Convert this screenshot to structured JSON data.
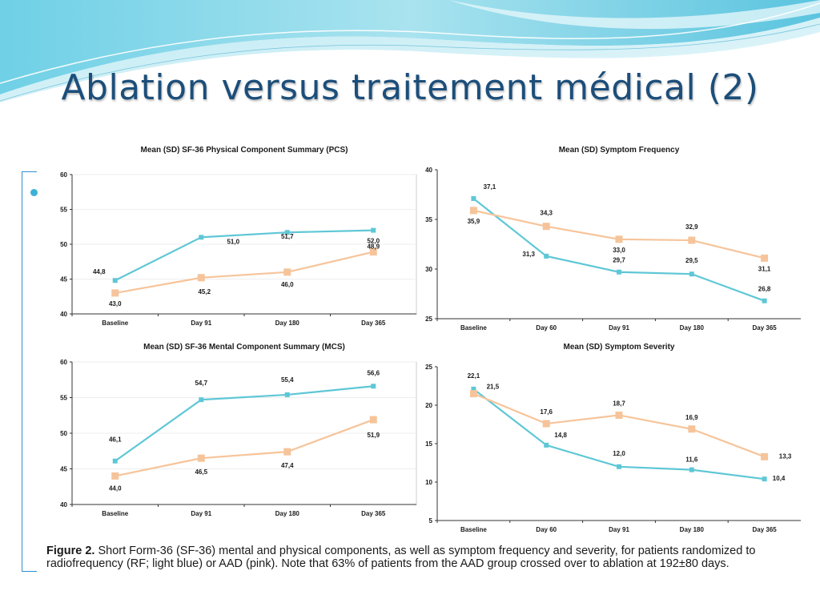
{
  "slide": {
    "title": "Ablation versus traitement médical (2)"
  },
  "colors": {
    "rf": "#5ec7d6",
    "aad": "#f6c49a",
    "title": "#1c4e7a",
    "accent": "#2f8fcf"
  },
  "caption": {
    "label": "Figure 2.",
    "text": " Short Form-36 (SF-36) mental and physical components, as well as symptom frequency and severity, for patients randomized to radiofrequency (RF; light blue) or AAD (pink). Note that 63% of patients from the AAD group crossed over to ablation at 192±80 days."
  },
  "chart_data": [
    {
      "type": "line",
      "title": "Mean (SD) SF-36 Physical Component Summary (PCS)",
      "categories": [
        "Baseline",
        "Day 91",
        "Day 180",
        "Day 365"
      ],
      "ylim": [
        40,
        60
      ],
      "yticks": [
        "40",
        "45",
        "50",
        "55",
        "60"
      ],
      "series": [
        {
          "key": "rf",
          "values": [
            44.8,
            51.0,
            51.7,
            52.0
          ],
          "labels": [
            "44,8",
            "51,0",
            "51,7",
            "52,0"
          ]
        },
        {
          "key": "aad",
          "values": [
            43.0,
            45.2,
            46.0,
            48.9
          ],
          "labels": [
            "43,0",
            "45,2",
            "46,0",
            "48,9"
          ]
        }
      ],
      "grid": true
    },
    {
      "type": "line",
      "title": "Mean (SD) Symptom Frequency",
      "categories": [
        "Baseline",
        "Day 60",
        "Day 91",
        "Day 180",
        "Day 365"
      ],
      "ylim": [
        25,
        40
      ],
      "yticks": [
        "25",
        "30",
        "35",
        "40"
      ],
      "series": [
        {
          "key": "rf",
          "values": [
            37.1,
            31.3,
            29.7,
            29.5,
            26.8
          ],
          "labels": [
            "37,1",
            "31,3",
            "29,7",
            "29,5",
            "26,8"
          ]
        },
        {
          "key": "aad",
          "values": [
            35.9,
            34.3,
            33.0,
            32.9,
            31.1
          ],
          "labels": [
            "35,9",
            "34,3",
            "33,0",
            "32,9",
            "31,1"
          ]
        }
      ],
      "grid": false
    },
    {
      "type": "line",
      "title": "Mean (SD) SF-36 Mental Component Summary (MCS)",
      "categories": [
        "Baseline",
        "Day 91",
        "Day 180",
        "Day 365"
      ],
      "ylim": [
        40,
        60
      ],
      "yticks": [
        "40",
        "45",
        "50",
        "55",
        "60"
      ],
      "series": [
        {
          "key": "rf",
          "values": [
            46.1,
            54.7,
            55.4,
            56.6
          ],
          "labels": [
            "46,1",
            "54,7",
            "55,4",
            "56,6"
          ]
        },
        {
          "key": "aad",
          "values": [
            44.0,
            46.5,
            47.4,
            51.9
          ],
          "labels": [
            "44,0",
            "46,5",
            "47,4",
            "51,9"
          ]
        }
      ],
      "grid": true
    },
    {
      "type": "line",
      "title": "Mean (SD) Symptom Severity",
      "categories": [
        "Baseline",
        "Day 60",
        "Day 91",
        "Day 180",
        "Day 365"
      ],
      "ylim": [
        5,
        25
      ],
      "yticks": [
        "5",
        "10",
        "15",
        "20",
        "25"
      ],
      "series": [
        {
          "key": "rf",
          "values": [
            22.1,
            14.8,
            12.0,
            11.6,
            10.4
          ],
          "labels": [
            "22,1",
            "14,8",
            "12,0",
            "11,6",
            "10,4"
          ]
        },
        {
          "key": "aad",
          "values": [
            21.5,
            17.6,
            18.7,
            16.9,
            13.3
          ],
          "labels": [
            "21,5",
            "17,6",
            "18,7",
            "16,9",
            "13,3"
          ]
        }
      ],
      "grid": false
    }
  ]
}
